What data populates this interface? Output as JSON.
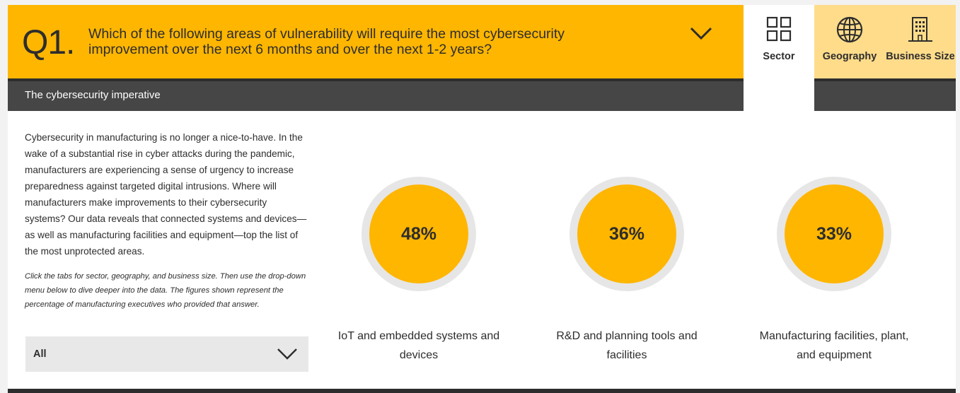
{
  "question": {
    "number": "Q1",
    "dot": ".",
    "text": "Which of the following areas of vulnerability will require the most cybersecurity improvement over the next 6 months and over the next 1-2 years?",
    "expand_icon": "chevron-down-icon"
  },
  "section_title": "The cybersecurity imperative",
  "tabs": [
    {
      "label": "Sector",
      "icon": "grid-icon",
      "active": true
    },
    {
      "label": "Geography",
      "icon": "globe-icon",
      "active": false
    },
    {
      "label": "Business Size",
      "icon": "building-icon",
      "active": false
    }
  ],
  "intro": "Cybersecurity in manufacturing is no longer a nice-to-have. In the wake of a substantial rise in cyber attacks during the pandemic, manufacturers are experiencing a sense of urgency to increase preparedness against targeted digital intrusions. Where will manufacturers make improvements to their cybersecurity systems? Our data reveals that connected systems and devices—as well as manufacturing facilities and equipment—top the list of the most unprotected areas.",
  "note": "Click the tabs for sector, geography, and business size. Then use the drop-down menu below to dive deeper into the data. The figures shown represent the percentage of manufacturing executives who provided that answer.",
  "filter": {
    "selected": "All",
    "icon": "chevron-down-icon"
  },
  "stats": [
    {
      "value": "48%",
      "percent": 48,
      "label": "IoT and embedded systems and devices"
    },
    {
      "value": "36%",
      "percent": 36,
      "label": "R&D and planning tools and facilities"
    },
    {
      "value": "33%",
      "percent": 33,
      "label": "Manufacturing facilities, plant, and equipment"
    }
  ],
  "colors": {
    "accent": "#ffb600",
    "accent_light": "#ffdc8a",
    "dark": "#464646",
    "text": "#2d2d2d",
    "ring": "#e6e6e6"
  }
}
